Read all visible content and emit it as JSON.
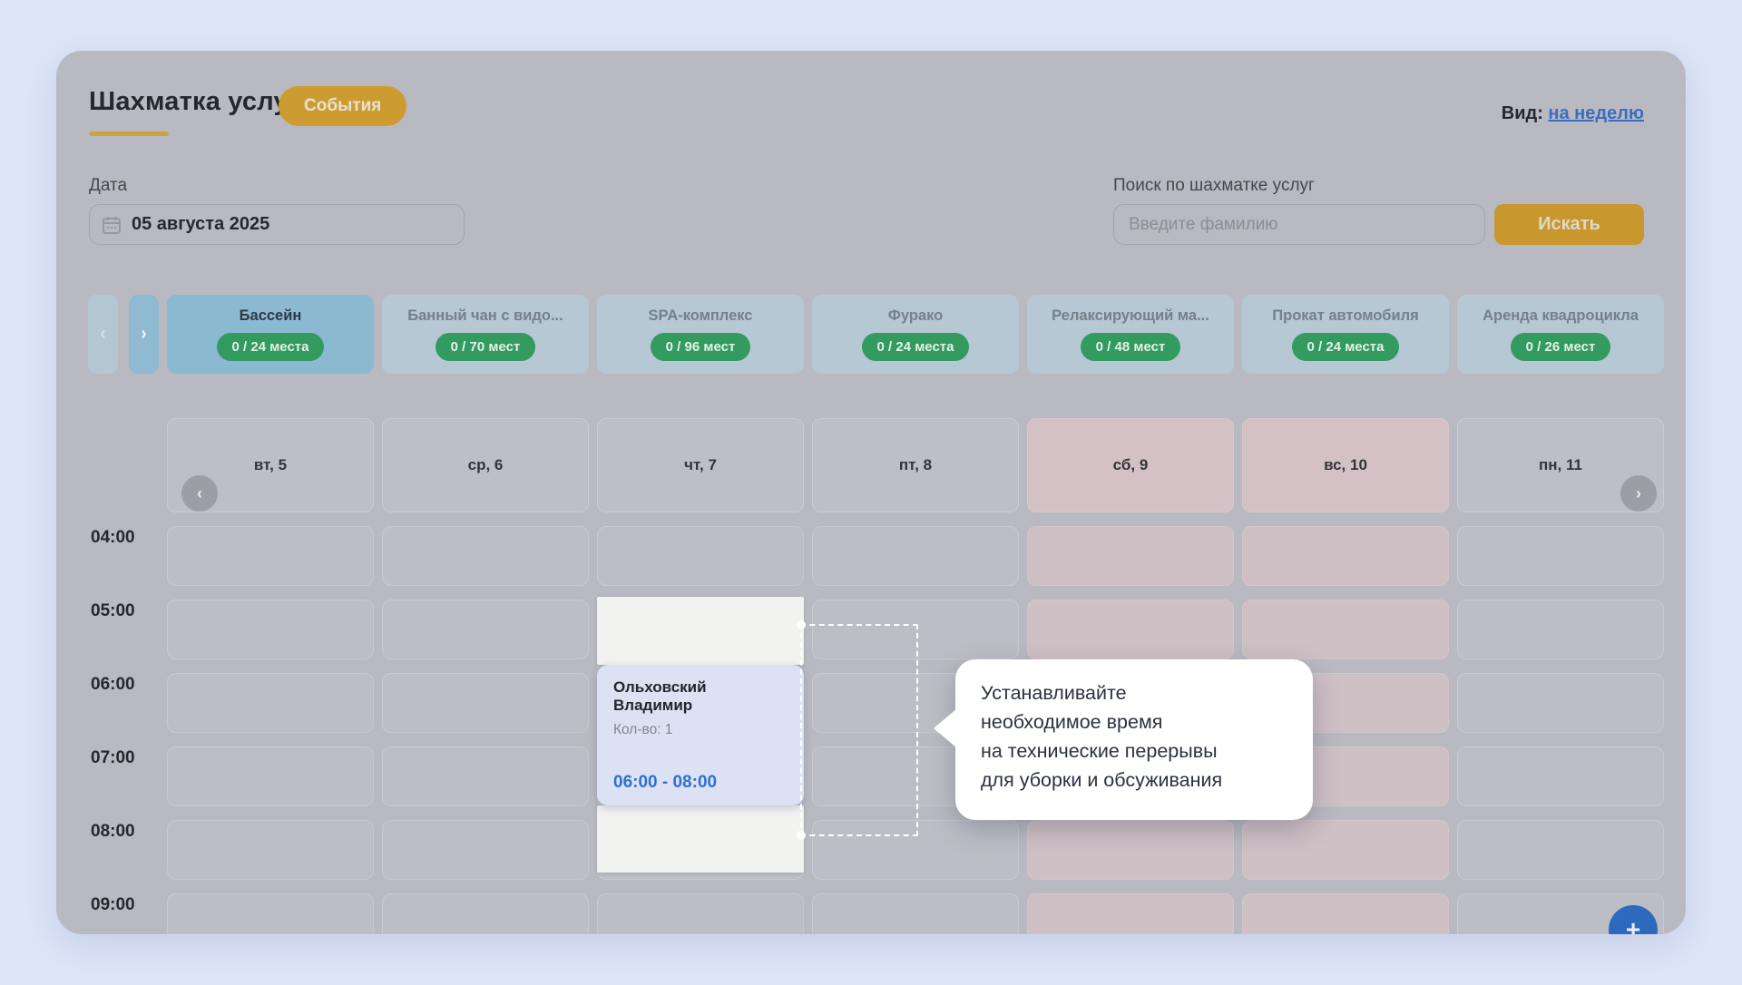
{
  "header": {
    "title": "Шахматка услуг",
    "events_button": "События",
    "view_label": "Вид:",
    "view_link": "на неделю"
  },
  "filters": {
    "date_label": "Дата",
    "date_value": "05 августа 2025",
    "search_label": "Поиск по шахматке услуг",
    "search_placeholder": "Введите фамилию",
    "search_button": "Искать"
  },
  "services": [
    {
      "name": "Бассейн",
      "capacity": "0 / 24 места",
      "selected": true
    },
    {
      "name": "Банный чан с видо...",
      "capacity": "0 / 70 мест",
      "selected": false
    },
    {
      "name": "SPA-комплекс",
      "capacity": "0 / 96 мест",
      "selected": false
    },
    {
      "name": "Фурако",
      "capacity": "0 / 24 места",
      "selected": false
    },
    {
      "name": "Релаксирующий ма...",
      "capacity": "0 / 48 мест",
      "selected": false
    },
    {
      "name": "Прокат автомобиля",
      "capacity": "0 / 24 места",
      "selected": false
    },
    {
      "name": "Аренда квадроцикла",
      "capacity": "0 / 26 мест",
      "selected": false
    }
  ],
  "calendar": {
    "days": [
      {
        "label": "вт, 5",
        "weekend": false
      },
      {
        "label": "ср, 6",
        "weekend": false
      },
      {
        "label": "чт, 7",
        "weekend": false
      },
      {
        "label": "пт, 8",
        "weekend": false
      },
      {
        "label": "сб, 9",
        "weekend": true
      },
      {
        "label": "вс, 10",
        "weekend": true
      },
      {
        "label": "пн, 11",
        "weekend": false
      }
    ],
    "times": [
      "04:00",
      "05:00",
      "06:00",
      "07:00",
      "08:00",
      "09:00"
    ]
  },
  "booking": {
    "name": "Ольховский Владимир",
    "quantity": "Кол-во: 1",
    "time": "06:00 - 08:00",
    "day": "чт, 7"
  },
  "tooltip": {
    "text": "Устанавливайте\nнеобходимое время\nна технические перерывы\nдля уборки и обсуживания"
  },
  "fab": {
    "label": "+"
  },
  "colors": {
    "accent_gold": "#cc9c30",
    "capacity_green": "#339a60",
    "link_blue": "#3a6dc0",
    "booking_time_blue": "#2f72cc",
    "weekend_pink": "#d4c1c6",
    "fab_blue": "#2d69bc",
    "selected_tab_blue": "#8cb9d2",
    "page_background": "#dce4f8"
  }
}
